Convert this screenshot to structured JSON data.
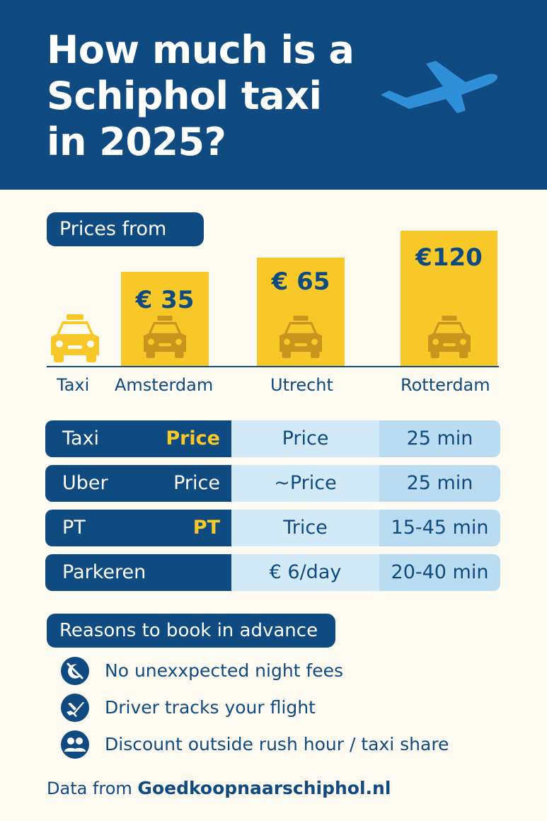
{
  "header": {
    "title": "How much is a\nSchiphol taxi\nin 2025?",
    "icon": "airplane-icon"
  },
  "prices_section": {
    "label": "Prices from",
    "standalone_label": "Taxi",
    "bars": [
      {
        "name": "Amsterdam",
        "price": "€ 35",
        "value": 35
      },
      {
        "name": "Utrecht",
        "price": "€ 65",
        "value": 65
      },
      {
        "name": "Rotterdam",
        "price": "€120",
        "value": 120
      }
    ]
  },
  "comparison": {
    "rows": [
      {
        "mode": "Taxi",
        "tag": "Price",
        "tag_color": "yellow",
        "price": "Price",
        "time": "25 min"
      },
      {
        "mode": "Uber",
        "tag": "Price",
        "tag_color": "white",
        "price": "~Price",
        "time": "25 min"
      },
      {
        "mode": "PT",
        "tag": "PT",
        "tag_color": "yellow",
        "price": "Trice",
        "time": "15-45 min"
      },
      {
        "mode": "Parkeren",
        "tag": "",
        "tag_color": "white",
        "price": "€ 6/day",
        "time": "20-40 min"
      }
    ]
  },
  "reasons": {
    "label": "Reasons to book in advance",
    "items": [
      {
        "icon": "no-moon-icon",
        "text": "No unexxpected night fees"
      },
      {
        "icon": "airplane-icon",
        "text": "Driver tracks your flight"
      },
      {
        "icon": "people-icon",
        "text": "Discount outside rush hour / taxi share"
      }
    ]
  },
  "footer": {
    "prefix": "Data from ",
    "source": "Goedkoopnaarschiphol.nl"
  },
  "colors": {
    "navy": "#0f4a80",
    "yellow": "#f8c828",
    "light_blue": "#d2e9f7",
    "mid_blue": "#b9dcf1",
    "cream": "#fdfaf1",
    "plane_blue": "#2f8fd8"
  }
}
